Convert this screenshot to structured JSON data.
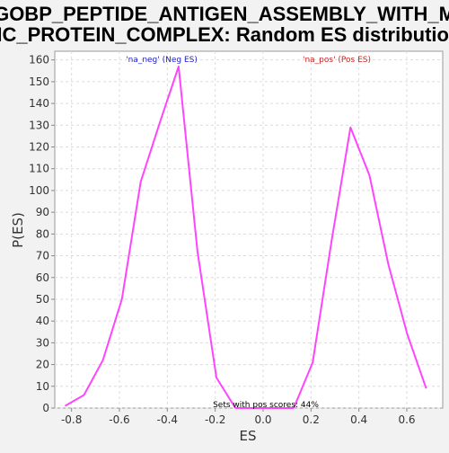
{
  "chart_data": {
    "type": "line",
    "title_lines": [
      "GOBP_PEPTIDE_ANTIGEN_ASSEMBLY_WITH_M",
      "HC_PROTEIN_COMPLEX: Random ES distribution"
    ],
    "xlabel": "ES",
    "ylabel": "P(ES)",
    "xlim": [
      -0.87,
      0.75
    ],
    "ylim": [
      0,
      164
    ],
    "xticks": [
      -0.8,
      -0.6,
      -0.4,
      -0.2,
      0.0,
      0.2,
      0.4,
      0.6
    ],
    "xtick_labels": [
      "-0.8",
      "-0.6",
      "-0.4",
      "-0.2",
      "0.0",
      "0.2",
      "0.4",
      "0.6"
    ],
    "yticks": [
      0,
      10,
      20,
      30,
      40,
      50,
      60,
      70,
      80,
      90,
      100,
      110,
      120,
      130,
      140,
      150,
      160
    ],
    "ytick_labels": [
      "0",
      "10",
      "20",
      "30",
      "40",
      "50",
      "60",
      "70",
      "80",
      "90",
      "100",
      "110",
      "120",
      "130",
      "140",
      "150",
      "160"
    ],
    "grid": true,
    "line_color": "#ff44ff",
    "series": [
      {
        "name": "'na_neg' (Neg ES)",
        "legend_color": "#2222cc",
        "x": [
          -0.827,
          -0.748,
          -0.669,
          -0.59,
          -0.511,
          -0.432,
          -0.353,
          -0.274,
          -0.195,
          -0.116
        ],
        "y": [
          1,
          6,
          22,
          50,
          104,
          131,
          157,
          72,
          14,
          0
        ]
      },
      {
        "name": "'na_pos' (Pos ES)",
        "legend_color": "#cc2222",
        "x": [
          0.128,
          0.207,
          0.286,
          0.365,
          0.444,
          0.523,
          0.602,
          0.681
        ],
        "y": [
          0,
          21,
          77,
          129,
          107,
          66,
          34,
          9
        ]
      }
    ],
    "bridge": {
      "x": [
        -0.116,
        0.128
      ],
      "y": [
        0,
        0
      ]
    },
    "annotation": "Sets with pos scores: 44%"
  }
}
